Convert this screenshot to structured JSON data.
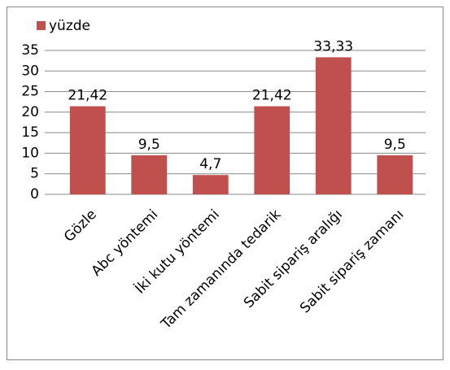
{
  "chart_data": {
    "type": "bar",
    "categories": [
      "Gözle",
      "Abc yöntemi",
      "İki kutu yöntemi",
      "Tam zamanında tedarik",
      "Sabit sipariş aralığı",
      "Sabit sipariş zamanı"
    ],
    "series": [
      {
        "name": "yüzde",
        "color": "#c0504d",
        "values": [
          21.42,
          9.5,
          4.7,
          21.42,
          33.33,
          9.5
        ],
        "value_labels": [
          "21,42",
          "9,5",
          "4,7",
          "21,42",
          "33,33",
          "9,5"
        ]
      }
    ],
    "ylim": [
      0,
      35
    ],
    "yticks": [
      0,
      5,
      10,
      15,
      20,
      25,
      30,
      35
    ],
    "grid": true,
    "legend": "top-left"
  }
}
